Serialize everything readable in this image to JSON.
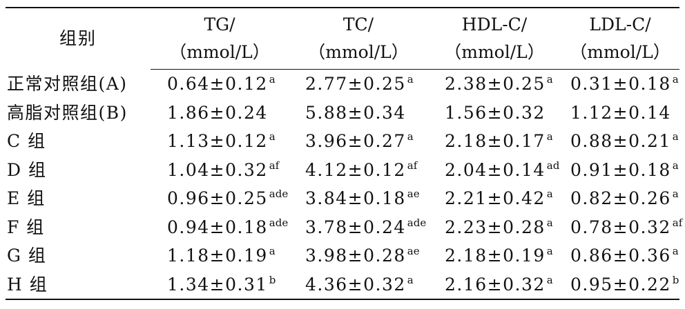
{
  "chart_data": {
    "type": "table",
    "columns": [
      {
        "name": "组别",
        "unit": ""
      },
      {
        "name": "TG/",
        "unit": "（mmol/L）"
      },
      {
        "name": "TC/",
        "unit": "（mmol/L）"
      },
      {
        "name": "HDL-C/",
        "unit": "（mmol/L）"
      },
      {
        "name": "LDL-C/",
        "unit": "（mmol/L）"
      }
    ],
    "rows": [
      {
        "group": "正常对照组(A)",
        "cells": [
          {
            "value": "0.64±0.12",
            "sup": "a"
          },
          {
            "value": "2.77±0.25",
            "sup": "a"
          },
          {
            "value": "2.38±0.25",
            "sup": "a"
          },
          {
            "value": "0.31±0.18",
            "sup": "a"
          }
        ]
      },
      {
        "group": "高脂对照组(B)",
        "cells": [
          {
            "value": "1.86±0.24",
            "sup": ""
          },
          {
            "value": "5.88±0.34",
            "sup": ""
          },
          {
            "value": "1.56±0.32",
            "sup": ""
          },
          {
            "value": "1.12±0.14",
            "sup": ""
          }
        ]
      },
      {
        "group": "C 组",
        "cells": [
          {
            "value": "1.13±0.12",
            "sup": "a"
          },
          {
            "value": "3.96±0.27",
            "sup": "a"
          },
          {
            "value": "2.18±0.17",
            "sup": "a"
          },
          {
            "value": "0.88±0.21",
            "sup": "a"
          }
        ]
      },
      {
        "group": "D 组",
        "cells": [
          {
            "value": "1.04±0.32",
            "sup": "af"
          },
          {
            "value": "4.12±0.12",
            "sup": "af"
          },
          {
            "value": "2.04±0.14",
            "sup": "ad"
          },
          {
            "value": "0.91±0.18",
            "sup": "a"
          }
        ]
      },
      {
        "group": "E 组",
        "cells": [
          {
            "value": "0.96±0.25",
            "sup": "ade"
          },
          {
            "value": "3.84±0.18",
            "sup": "ae"
          },
          {
            "value": "2.21±0.42",
            "sup": "a"
          },
          {
            "value": "0.82±0.26",
            "sup": "a"
          }
        ]
      },
      {
        "group": "F 组",
        "cells": [
          {
            "value": "0.94±0.18",
            "sup": "ade"
          },
          {
            "value": "3.78±0.24",
            "sup": "ade"
          },
          {
            "value": "2.23±0.28",
            "sup": "a"
          },
          {
            "value": "0.78±0.32",
            "sup": "af"
          }
        ]
      },
      {
        "group": "G 组",
        "cells": [
          {
            "value": "1.18±0.19",
            "sup": "a"
          },
          {
            "value": "3.98±0.28",
            "sup": "ae"
          },
          {
            "value": "2.18±0.19",
            "sup": "a"
          },
          {
            "value": "0.86±0.36",
            "sup": "a"
          }
        ]
      },
      {
        "group": "H 组",
        "cells": [
          {
            "value": "1.34±0.31",
            "sup": "b"
          },
          {
            "value": "4.36±0.32",
            "sup": "a"
          },
          {
            "value": "2.16±0.32",
            "sup": "a"
          },
          {
            "value": "0.95±0.22",
            "sup": "b"
          }
        ]
      }
    ]
  }
}
